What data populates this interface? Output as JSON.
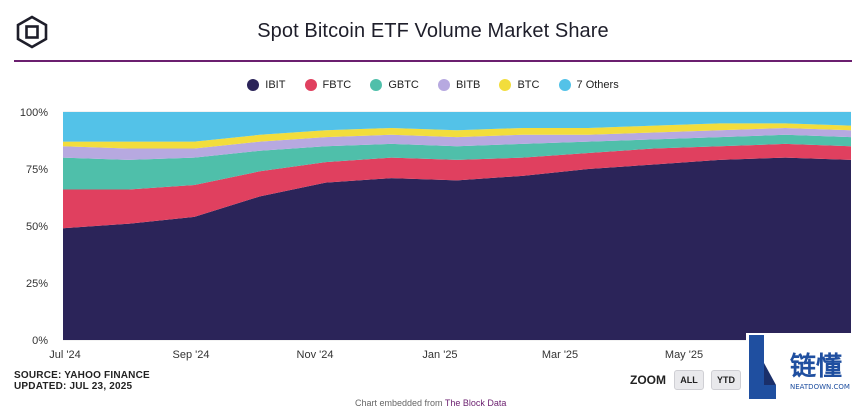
{
  "header": {
    "title": "Spot Bitcoin ETF Volume Market Share"
  },
  "footer": {
    "source": "SOURCE: YAHOO FINANCE",
    "updated": "UPDATED: JUL 23, 2025"
  },
  "zoom": {
    "label": "ZOOM",
    "buttons": [
      "ALL",
      "YTD"
    ]
  },
  "credit": {
    "prefix": "Chart embedded from",
    "source": "The Block Data"
  },
  "watermark": {
    "cjk": "链懂",
    "sub": "NEATDOWN.COM"
  },
  "colors": {
    "IBIT": "#2b2459",
    "FBTC": "#e0405f",
    "GBTC": "#4fbfaa",
    "BITB": "#b7a9e0",
    "BTC": "#f2dd3c",
    "Others": "#53c2e8",
    "accent": "#6b1f6f"
  },
  "chart_data": {
    "type": "area",
    "stacked": true,
    "percent": true,
    "title": "Spot Bitcoin ETF Volume Market Share",
    "legend": [
      "IBIT",
      "FBTC",
      "GBTC",
      "BITB",
      "BTC",
      "7 Others"
    ],
    "x_tick_labels": [
      "Jul '24",
      "Sep '24",
      "Nov '24",
      "Jan '25",
      "Mar '25",
      "May '25"
    ],
    "y_tick_labels": [
      "0%",
      "25%",
      "50%",
      "75%",
      "100%"
    ],
    "ylim": [
      0,
      100
    ],
    "x": [
      "Jul '24",
      "Aug '24",
      "Sep '24",
      "Oct '24",
      "Nov '24",
      "Dec '24",
      "Jan '25",
      "Feb '25",
      "Mar '25",
      "Apr '25",
      "May '25",
      "Jun '25",
      "Jul '25"
    ],
    "series": [
      {
        "name": "IBIT",
        "values": [
          49,
          51,
          54,
          63,
          69,
          71,
          70,
          72,
          75,
          77,
          79,
          80,
          79
        ]
      },
      {
        "name": "FBTC",
        "values": [
          17,
          15,
          14,
          11,
          9,
          9,
          9,
          8,
          7,
          7,
          6,
          6,
          6
        ]
      },
      {
        "name": "GBTC",
        "values": [
          14,
          13,
          12,
          9,
          7,
          6,
          6,
          6,
          5,
          4,
          4,
          4,
          4
        ]
      },
      {
        "name": "BITB",
        "values": [
          5,
          5,
          4,
          4,
          4,
          4,
          4,
          4,
          3,
          3,
          3,
          3,
          3
        ]
      },
      {
        "name": "BTC",
        "values": [
          2,
          3,
          3,
          3,
          3,
          3,
          3,
          3,
          3,
          3,
          3,
          2,
          2
        ]
      },
      {
        "name": "7 Others",
        "values": [
          13,
          13,
          13,
          10,
          8,
          7,
          8,
          7,
          7,
          6,
          5,
          5,
          6
        ]
      }
    ]
  }
}
